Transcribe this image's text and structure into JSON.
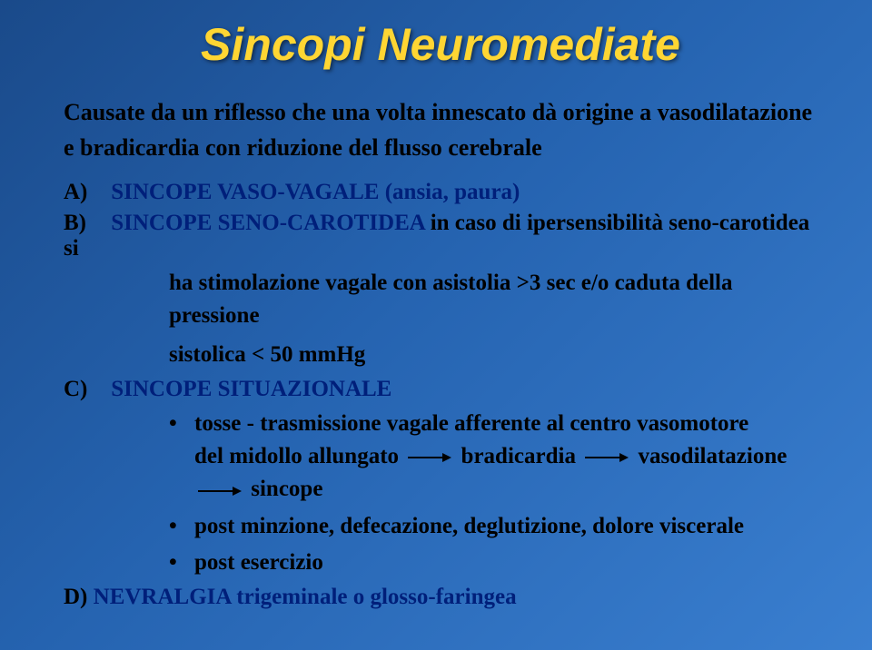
{
  "title": "Sincopi Neuromediate",
  "intro_line1": "Causate da un riflesso che una volta innescato dà origine a vasodilatazione",
  "intro_line2": "e bradicardia con riduzione del flusso cerebrale",
  "items": {
    "a": {
      "label": "A)",
      "text": "SINCOPE VASO-VAGALE (ansia, paura)"
    },
    "b": {
      "label": "B)",
      "text_blue": "SINCOPE SENO-CAROTIDEA",
      "text_black": " in caso di ipersensibilità seno-carotidea si",
      "sub1": "ha stimolazione vagale con asistolia >3 sec e/o caduta della pressione",
      "sub2": "sistolica < 50 mmHg"
    },
    "c": {
      "label": "C)",
      "text": "SINCOPE SITUAZIONALE",
      "bullets": [
        {
          "line1": "tosse  -  trasmissione vagale afferente al centro vasomotore",
          "line2_parts": [
            "del midollo  allungato",
            "bradicardia",
            "vasodilatazione",
            "sincope"
          ]
        },
        {
          "line1": "post minzione, defecazione, deglutizione, dolore viscerale"
        },
        {
          "line1": "post esercizio"
        }
      ]
    },
    "d": {
      "label": "D)",
      "text": "NEVRALGIA trigeminale o glosso-faringea"
    }
  },
  "colors": {
    "title": "#ffd633",
    "accent": "#001f7a",
    "body": "#000000"
  }
}
